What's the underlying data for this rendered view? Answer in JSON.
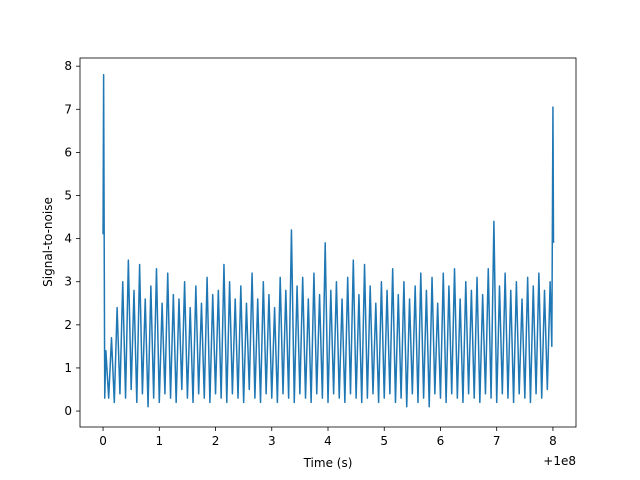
{
  "chart_data": {
    "type": "line",
    "x_label": "Time (s)",
    "y_label": "Signal-to-noise",
    "x_offset_label": "+1e8",
    "xlim": [
      -0.41,
      8.41
    ],
    "ylim": [
      -0.37,
      8.19
    ],
    "xticks": [
      0,
      1,
      2,
      3,
      4,
      5,
      6,
      7,
      8
    ],
    "yticks": [
      0,
      1,
      2,
      3,
      4,
      5,
      6,
      7,
      8
    ],
    "series": [
      {
        "color": "#1f77b4",
        "x": [
          0,
          0.01,
          0.03,
          0.05,
          0.1,
          0.15,
          0.2,
          0.25,
          0.3,
          0.35,
          0.4,
          0.45,
          0.5,
          0.55,
          0.6,
          0.65,
          0.7,
          0.75,
          0.8,
          0.85,
          0.9,
          0.95,
          1.0,
          1.05,
          1.1,
          1.15,
          1.2,
          1.25,
          1.3,
          1.35,
          1.4,
          1.45,
          1.5,
          1.55,
          1.6,
          1.65,
          1.7,
          1.75,
          1.8,
          1.85,
          1.9,
          1.95,
          2.0,
          2.05,
          2.1,
          2.15,
          2.2,
          2.25,
          2.3,
          2.35,
          2.4,
          2.45,
          2.5,
          2.55,
          2.6,
          2.65,
          2.7,
          2.75,
          2.8,
          2.85,
          2.9,
          2.95,
          3.0,
          3.05,
          3.1,
          3.15,
          3.2,
          3.25,
          3.3,
          3.35,
          3.4,
          3.45,
          3.5,
          3.55,
          3.6,
          3.65,
          3.7,
          3.75,
          3.8,
          3.85,
          3.9,
          3.95,
          4.0,
          4.05,
          4.1,
          4.15,
          4.2,
          4.25,
          4.3,
          4.35,
          4.4,
          4.45,
          4.5,
          4.55,
          4.6,
          4.65,
          4.7,
          4.75,
          4.8,
          4.85,
          4.9,
          4.95,
          5.0,
          5.05,
          5.1,
          5.15,
          5.2,
          5.25,
          5.3,
          5.35,
          5.4,
          5.45,
          5.5,
          5.55,
          5.6,
          5.65,
          5.7,
          5.75,
          5.8,
          5.85,
          5.9,
          5.95,
          6.0,
          6.05,
          6.1,
          6.15,
          6.2,
          6.25,
          6.3,
          6.35,
          6.4,
          6.45,
          6.5,
          6.55,
          6.6,
          6.65,
          6.7,
          6.75,
          6.8,
          6.85,
          6.9,
          6.95,
          7.0,
          7.05,
          7.1,
          7.15,
          7.2,
          7.25,
          7.3,
          7.35,
          7.4,
          7.45,
          7.5,
          7.55,
          7.6,
          7.65,
          7.7,
          7.75,
          7.8,
          7.85,
          7.9,
          7.95,
          7.98,
          8.0,
          8.01
        ],
        "values": [
          4.1,
          7.8,
          0.3,
          1.4,
          0.3,
          1.7,
          0.2,
          2.4,
          0.4,
          3.0,
          0.3,
          3.5,
          0.5,
          2.8,
          0.2,
          3.4,
          0.4,
          2.6,
          0.1,
          2.9,
          0.3,
          3.3,
          0.2,
          2.5,
          0.4,
          3.2,
          0.3,
          2.7,
          0.2,
          2.6,
          0.5,
          3.0,
          0.3,
          2.4,
          0.2,
          2.9,
          0.4,
          2.5,
          0.3,
          3.1,
          0.2,
          2.7,
          0.4,
          2.8,
          0.3,
          3.4,
          0.2,
          3.0,
          0.4,
          2.6,
          0.3,
          2.9,
          0.2,
          2.5,
          0.5,
          3.2,
          0.3,
          2.6,
          0.2,
          3.0,
          0.4,
          2.7,
          0.3,
          2.4,
          0.2,
          3.1,
          0.4,
          2.8,
          0.3,
          4.2,
          0.2,
          2.9,
          0.4,
          3.1,
          0.3,
          2.6,
          0.2,
          3.2,
          0.4,
          2.7,
          0.3,
          3.9,
          0.2,
          2.8,
          0.4,
          3.0,
          0.3,
          2.6,
          0.2,
          3.1,
          0.4,
          3.5,
          0.3,
          2.7,
          0.2,
          3.4,
          0.3,
          2.9,
          0.4,
          2.5,
          0.2,
          3.0,
          0.3,
          2.8,
          0.4,
          3.3,
          0.2,
          2.7,
          0.3,
          3.0,
          0.1,
          2.6,
          0.4,
          2.9,
          0.2,
          3.2,
          0.3,
          2.8,
          0.1,
          3.1,
          0.4,
          2.5,
          0.3,
          3.2,
          0.2,
          2.9,
          0.4,
          3.3,
          0.3,
          2.6,
          0.2,
          3.0,
          0.4,
          2.8,
          0.3,
          3.1,
          0.2,
          2.7,
          0.4,
          3.3,
          0.3,
          4.4,
          0.2,
          2.9,
          0.4,
          3.2,
          0.3,
          2.8,
          0.2,
          3.0,
          0.4,
          2.6,
          0.3,
          3.1,
          0.2,
          2.9,
          0.4,
          3.2,
          0.3,
          2.8,
          0.5,
          3.0,
          1.5,
          7.05,
          3.9
        ]
      }
    ]
  }
}
